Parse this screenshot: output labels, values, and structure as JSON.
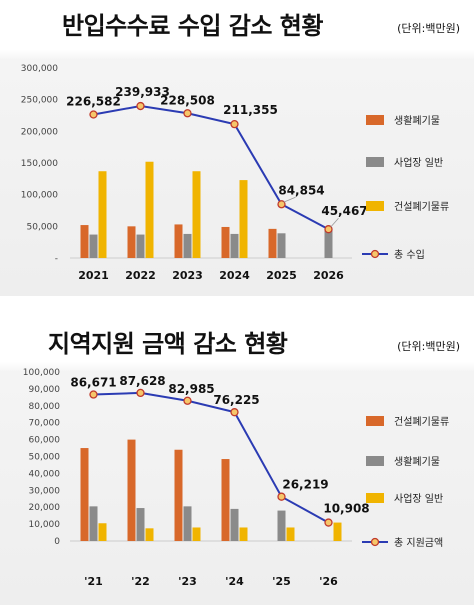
{
  "chart_data": [
    {
      "type": "bar",
      "title": "반입수수료 수입 감소 현황",
      "unit_label": "(단위:백만원)",
      "categories": [
        "2021",
        "2022",
        "2023",
        "2024",
        "2025",
        "2026"
      ],
      "ylim": [
        0,
        300000
      ],
      "yticks": [
        "-",
        "50,000",
        "100,000",
        "150,000",
        "200,000",
        "250,000",
        "300,000"
      ],
      "ytick_values": [
        0,
        50000,
        100000,
        150000,
        200000,
        250000,
        300000
      ],
      "series": [
        {
          "name": "생활폐기물",
          "kind": "bar",
          "color": "#d8682a",
          "values": [
            52000,
            50000,
            53000,
            49000,
            46000,
            null
          ]
        },
        {
          "name": "사업장 일반",
          "kind": "bar",
          "color": "#8a8a8a",
          "values": [
            37000,
            37000,
            38000,
            38000,
            39000,
            45467
          ]
        },
        {
          "name": "건설폐기물류",
          "kind": "bar",
          "color": "#f0b400",
          "values": [
            137000,
            152000,
            137000,
            123000,
            null,
            null
          ]
        },
        {
          "name": "총 수입",
          "kind": "line",
          "color": "#2b3bb3",
          "marker_fill": "#f6c66a",
          "marker_stroke": "#c0392b",
          "values": [
            226582,
            239933,
            228508,
            211355,
            84854,
            45467
          ]
        }
      ],
      "data_labels": [
        "226,582",
        "239,933",
        "228,508",
        "211,355",
        "84,854",
        "45,467"
      ],
      "legend_placement": "right",
      "grid": false
    },
    {
      "type": "bar",
      "title": "지역지원 금액 감소 현황",
      "unit_label": "(단위:백만원)",
      "categories": [
        "'21",
        "'22",
        "'23",
        "'24",
        "'25",
        "'26"
      ],
      "ylim": [
        0,
        100000
      ],
      "yticks": [
        "0",
        "10,000",
        "20,000",
        "30,000",
        "40,000",
        "50,000",
        "60,000",
        "70,000",
        "80,000",
        "90,000",
        "100,000"
      ],
      "ytick_values": [
        0,
        10000,
        20000,
        30000,
        40000,
        50000,
        60000,
        70000,
        80000,
        90000,
        100000
      ],
      "series": [
        {
          "name": "건설폐기물류",
          "kind": "bar",
          "color": "#d8682a",
          "values": [
            55000,
            60000,
            54000,
            48500,
            null,
            null
          ]
        },
        {
          "name": "생활폐기물",
          "kind": "bar",
          "color": "#8a8a8a",
          "values": [
            20500,
            19500,
            20500,
            19000,
            18000,
            null
          ]
        },
        {
          "name": "사업장 일반",
          "kind": "bar",
          "color": "#f0b400",
          "values": [
            10500,
            7500,
            8000,
            8000,
            8000,
            10908
          ]
        },
        {
          "name": "총 지원금액",
          "kind": "line",
          "color": "#2b3bb3",
          "marker_fill": "#f6c66a",
          "marker_stroke": "#c0392b",
          "values": [
            86671,
            87628,
            82985,
            76225,
            26219,
            10908
          ]
        }
      ],
      "data_labels": [
        "86,671",
        "87,628",
        "82,985",
        "76,225",
        "26,219",
        "10,908"
      ],
      "legend_placement": "right",
      "grid": false
    }
  ]
}
